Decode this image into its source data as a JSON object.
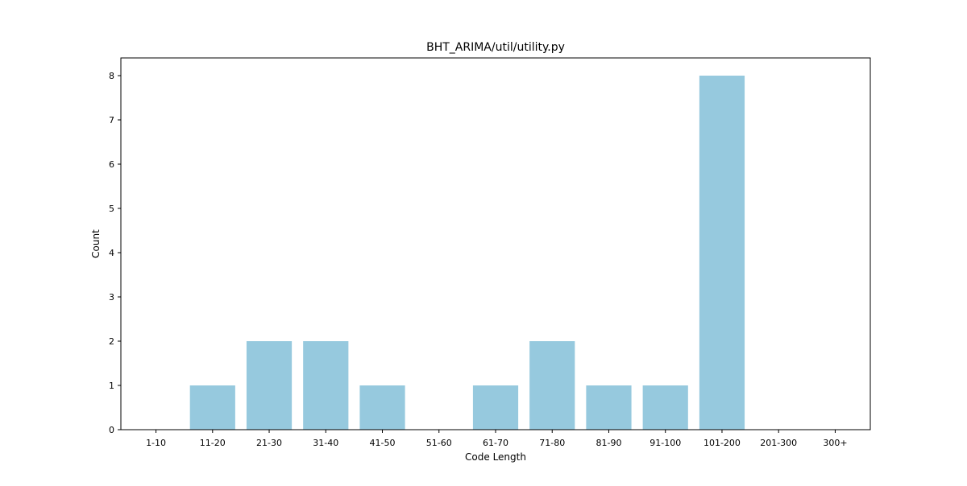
{
  "chart_data": {
    "type": "bar",
    "title": "BHT_ARIMA/util/utility.py",
    "xlabel": "Code Length",
    "ylabel": "Count",
    "categories": [
      "1-10",
      "11-20",
      "21-30",
      "31-40",
      "41-50",
      "51-60",
      "61-70",
      "71-80",
      "81-90",
      "91-100",
      "101-200",
      "201-300",
      "300+"
    ],
    "values": [
      0,
      1,
      2,
      2,
      1,
      0,
      1,
      2,
      1,
      1,
      8,
      0,
      0
    ],
    "ylim": [
      0,
      8.4
    ],
    "yticks": [
      0,
      1,
      2,
      3,
      4,
      5,
      6,
      7,
      8
    ],
    "grid": false,
    "bar_color": "#96c9de"
  }
}
